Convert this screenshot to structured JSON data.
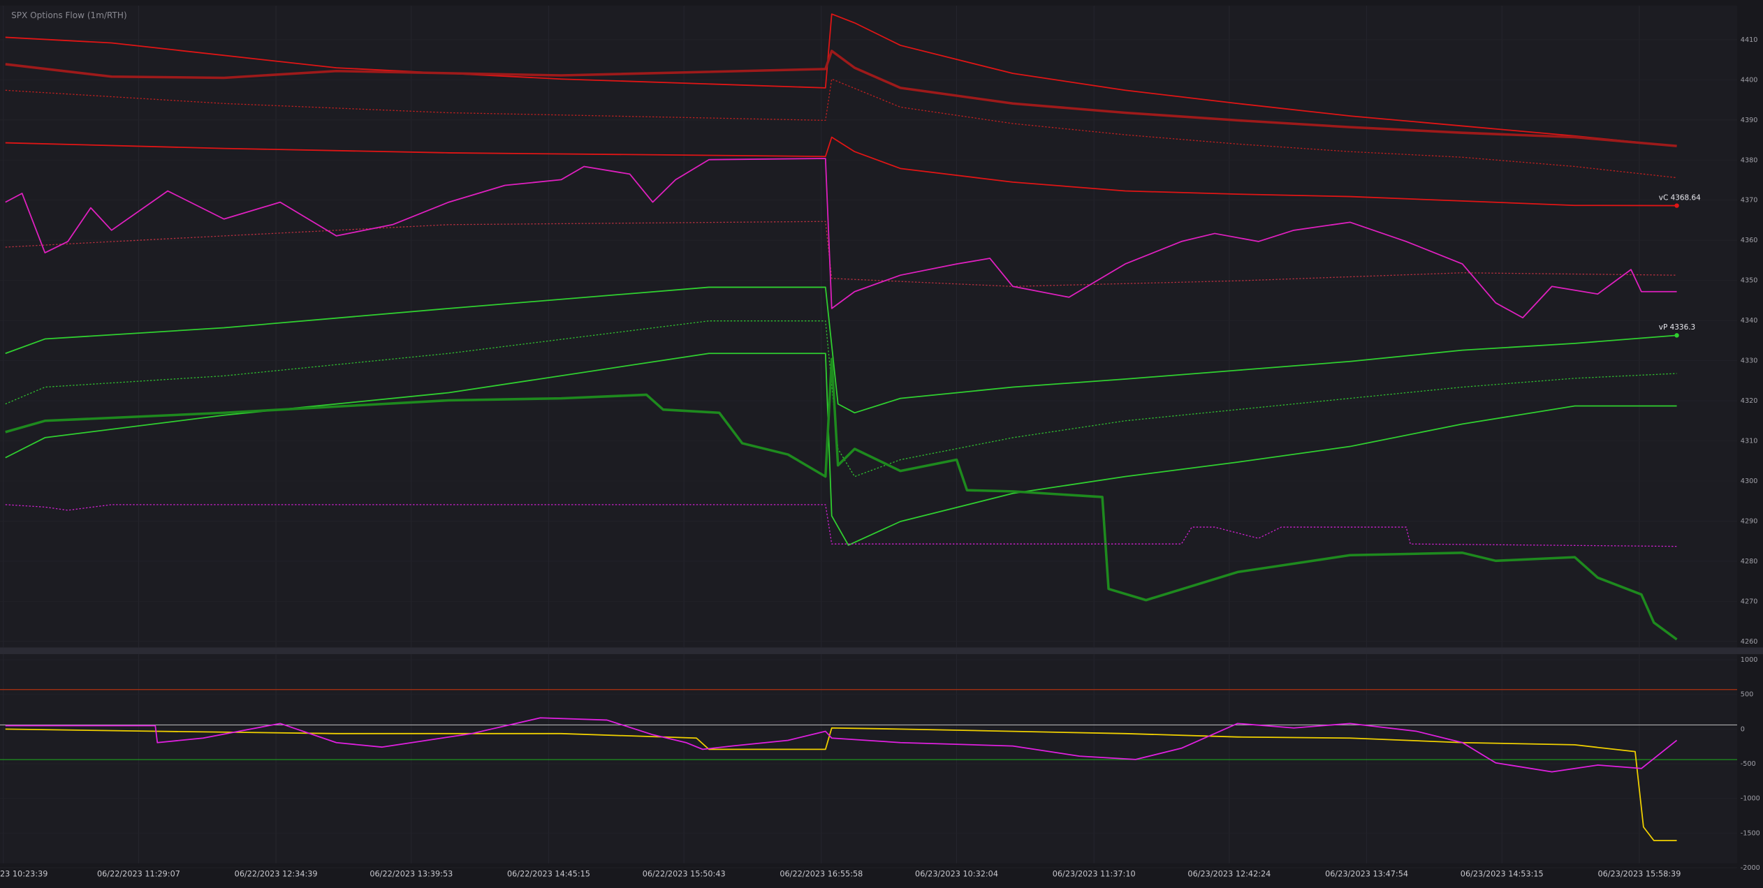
{
  "chart_data": [
    {
      "type": "line",
      "title": "SPX Options Flow (1m/RTH)",
      "xlim": [
        -1.6,
        833
      ],
      "ylim": [
        4258.5,
        4418.5
      ],
      "yticks": [
        4260,
        4270,
        4280,
        4290,
        4300,
        4310,
        4320,
        4330,
        4340,
        4350,
        4360,
        4370,
        4380,
        4390,
        4400,
        4410
      ],
      "grid": true,
      "series": [
        {
          "color": "#e01515",
          "style": "solid",
          "x": [
            1,
            52,
            160,
            268,
            395,
            398,
            409,
            431,
            485,
            539,
            593,
            647,
            701,
            755,
            804
          ],
          "values": [
            4410.6,
            4409.2,
            4403.0,
            4400.2,
            4398.0,
            4416.4,
            4414.2,
            4408.6,
            4401.6,
            4397.4,
            4394.1,
            4391.0,
            4388.5,
            4386.0,
            4383.5
          ]
        },
        {
          "color": "#9e1a1a",
          "style": "thick",
          "x": [
            1,
            52,
            106,
            160,
            268,
            395,
            398,
            409,
            431,
            485,
            539,
            593,
            647,
            701,
            755,
            804
          ],
          "values": [
            4403.9,
            4400.8,
            4400.5,
            4402.2,
            4401.1,
            4402.7,
            4407.2,
            4403.0,
            4398.0,
            4394.1,
            4391.8,
            4389.9,
            4388.2,
            4386.8,
            4385.7,
            4383.5
          ]
        },
        {
          "color": "#c02020",
          "style": "dotted",
          "x": [
            1,
            106,
            214,
            395,
            398,
            431,
            485,
            539,
            593,
            647,
            701,
            755,
            804
          ],
          "values": [
            4397.4,
            4394.1,
            4391.8,
            4389.9,
            4400.2,
            4393.2,
            4389.1,
            4386.3,
            4384.0,
            4382.1,
            4380.7,
            4378.4,
            4375.6
          ]
        },
        {
          "color": "#e01515",
          "style": "solid",
          "x": [
            1,
            106,
            214,
            395,
            398,
            409,
            431,
            485,
            539,
            593,
            647,
            701,
            755,
            804
          ],
          "values": [
            4384.3,
            4382.9,
            4381.8,
            4380.9,
            4385.7,
            4382.1,
            4377.9,
            4374.5,
            4372.3,
            4371.5,
            4370.9,
            4369.8,
            4368.7,
            4368.64
          ]
        },
        {
          "color": "#b83040",
          "style": "dotted",
          "x": [
            1,
            106,
            214,
            395,
            398,
            485,
            593,
            701,
            804
          ],
          "values": [
            4358.3,
            4361.1,
            4363.9,
            4364.7,
            4350.5,
            4348.5,
            4349.9,
            4351.9,
            4351.3
          ]
        },
        {
          "color": "#e020c0",
          "style": "solid",
          "x": [
            1,
            9,
            20,
            31,
            42,
            52,
            79,
            106,
            133,
            160,
            187,
            214,
            241,
            268,
            279,
            301,
            312,
            323,
            339,
            395,
            398,
            409,
            431,
            458,
            474,
            485,
            512,
            539,
            566,
            582,
            603,
            620,
            647,
            674,
            701,
            717,
            730,
            744,
            766,
            782,
            787,
            804
          ],
          "values": [
            4369.5,
            4371.7,
            4356.9,
            4359.7,
            4368.1,
            4362.5,
            4372.3,
            4365.3,
            4369.5,
            4361.1,
            4363.9,
            4369.5,
            4373.7,
            4375.1,
            4378.4,
            4376.5,
            4369.5,
            4375.1,
            4380.1,
            4380.4,
            4343.0,
            4347.2,
            4351.3,
            4354.1,
            4355.5,
            4348.5,
            4345.8,
            4354.1,
            4359.7,
            4361.7,
            4359.7,
            4362.5,
            4364.5,
            4359.7,
            4354.1,
            4344.4,
            4340.7,
            4348.5,
            4346.6,
            4352.7,
            4347.2,
            4347.2
          ]
        },
        {
          "color": "#30d030",
          "style": "solid",
          "x": [
            1,
            20,
            106,
            214,
            339,
            395,
            401,
            409,
            431,
            485,
            539,
            593,
            647,
            701,
            755,
            804
          ],
          "values": [
            4331.8,
            4335.4,
            4338.2,
            4343.0,
            4348.3,
            4348.3,
            4319.2,
            4317.0,
            4320.6,
            4323.4,
            4325.4,
            4327.6,
            4329.8,
            4332.6,
            4334.3,
            4336.3
          ]
        },
        {
          "color": "#30c030",
          "style": "dotted",
          "x": [
            1,
            20,
            106,
            214,
            339,
            395,
            401,
            409,
            431,
            485,
            539,
            593,
            647,
            701,
            755,
            804
          ],
          "values": [
            4319.2,
            4323.4,
            4326.2,
            4331.8,
            4339.9,
            4339.9,
            4308.0,
            4301.1,
            4305.3,
            4310.8,
            4315.0,
            4317.8,
            4320.6,
            4323.4,
            4325.6,
            4326.8
          ]
        },
        {
          "color": "#30d030",
          "style": "solid",
          "x": [
            1,
            20,
            106,
            214,
            339,
            395,
            398,
            406,
            431,
            485,
            539,
            593,
            647,
            701,
            755,
            804
          ],
          "values": [
            4305.8,
            4310.8,
            4316.4,
            4322.0,
            4331.8,
            4331.8,
            4291.3,
            4284.0,
            4289.9,
            4296.9,
            4301.1,
            4304.7,
            4308.6,
            4314.2,
            4318.7,
            4318.7
          ]
        },
        {
          "color": "#1e8a1e",
          "style": "thick",
          "x": [
            1,
            20,
            106,
            214,
            268,
            309,
            317,
            344,
            355,
            377,
            395,
            398,
            401,
            409,
            431,
            458,
            463,
            485,
            528,
            531,
            549,
            593,
            647,
            701,
            717,
            755,
            766,
            787,
            793,
            804
          ],
          "values": [
            4312.2,
            4315.0,
            4317.0,
            4320.1,
            4320.6,
            4321.5,
            4317.8,
            4317.0,
            4309.4,
            4306.6,
            4301.1,
            4330.4,
            4303.9,
            4308.0,
            4302.5,
            4305.3,
            4297.7,
            4297.4,
            4296.0,
            4273.1,
            4270.3,
            4277.3,
            4281.5,
            4282.1,
            4280.1,
            4281.0,
            4275.9,
            4271.7,
            4264.7,
            4260.5
          ]
        },
        {
          "color": "#d020d0",
          "style": "dotted",
          "x": [
            1,
            20,
            31,
            52,
            395,
            398,
            485,
            566,
            571,
            582,
            603,
            614,
            674,
            676,
            804
          ],
          "values": [
            4294.1,
            4293.5,
            4292.7,
            4294.1,
            4294.1,
            4284.3,
            4284.3,
            4284.3,
            4288.5,
            4288.5,
            4285.7,
            4288.5,
            4288.5,
            4284.3,
            4283.7
          ]
        }
      ],
      "annotations": [
        {
          "text": "vC 4368.64",
          "x": 804,
          "y": 4368.64,
          "color": "#e01515"
        },
        {
          "text": "vP 4336.3",
          "x": 804,
          "y": 4336.3,
          "color": "#30d030"
        }
      ]
    },
    {
      "type": "line",
      "xlim": [
        -1.6,
        833
      ],
      "ylim": [
        -2000,
        1080
      ],
      "yticks": [
        -2000,
        -1500,
        -1000,
        -500,
        0,
        500,
        1000
      ],
      "xticks": [
        {
          "value": 0,
          "label": "23 10:23:39"
        },
        {
          "value": 65,
          "label": "06/22/2023 11:29:07"
        },
        {
          "value": 131,
          "label": "06/22/2023 12:34:39"
        },
        {
          "value": 196,
          "label": "06/22/2023 13:39:53"
        },
        {
          "value": 262,
          "label": "06/22/2023 14:45:15"
        },
        {
          "value": 327,
          "label": "06/22/2023 15:50:43"
        },
        {
          "value": 393,
          "label": "06/22/2023 16:55:58"
        },
        {
          "value": 458,
          "label": "06/23/2023 10:32:04"
        },
        {
          "value": 524,
          "label": "06/23/2023 11:37:10"
        },
        {
          "value": 589,
          "label": "06/23/2023 12:42:24"
        },
        {
          "value": 655,
          "label": "06/23/2023 13:47:54"
        },
        {
          "value": 720,
          "label": "06/23/2023 14:53:15"
        },
        {
          "value": 786,
          "label": "06/23/2023 15:58:39"
        }
      ],
      "grid": true,
      "hlines": [
        {
          "value": 570,
          "color": "#b03010"
        },
        {
          "value": 60,
          "color": "#b0b0b0"
        },
        {
          "value": -440,
          "color": "#20a020"
        }
      ],
      "series": [
        {
          "color": "#f0d000",
          "style": "solid",
          "x": [
            1,
            74,
            160,
            268,
            333,
            339,
            395,
            398,
            431,
            539,
            593,
            647,
            701,
            755,
            784,
            788,
            793,
            804
          ],
          "values": [
            0,
            -32,
            -65,
            -65,
            -130,
            -292,
            -292,
            16,
            0,
            -65,
            -114,
            -130,
            -195,
            -227,
            -325,
            -1412,
            -1607,
            -1607
          ]
        },
        {
          "color": "#e020e0",
          "style": "solid",
          "x": [
            1,
            73,
            74,
            96,
            133,
            160,
            182,
            225,
            258,
            290,
            312,
            328,
            336,
            350,
            377,
            395,
            398,
            431,
            485,
            517,
            544,
            566,
            593,
            620,
            647,
            679,
            701,
            717,
            744,
            766,
            787,
            804
          ],
          "values": [
            49,
            49,
            -195,
            -130,
            81,
            -195,
            -260,
            -65,
            162,
            130,
            -81,
            -195,
            -292,
            -244,
            -162,
            -32,
            -130,
            -195,
            -244,
            -390,
            -438,
            -276,
            81,
            16,
            81,
            -32,
            -195,
            -487,
            -617,
            -519,
            -568,
            -162
          ]
        }
      ]
    }
  ]
}
